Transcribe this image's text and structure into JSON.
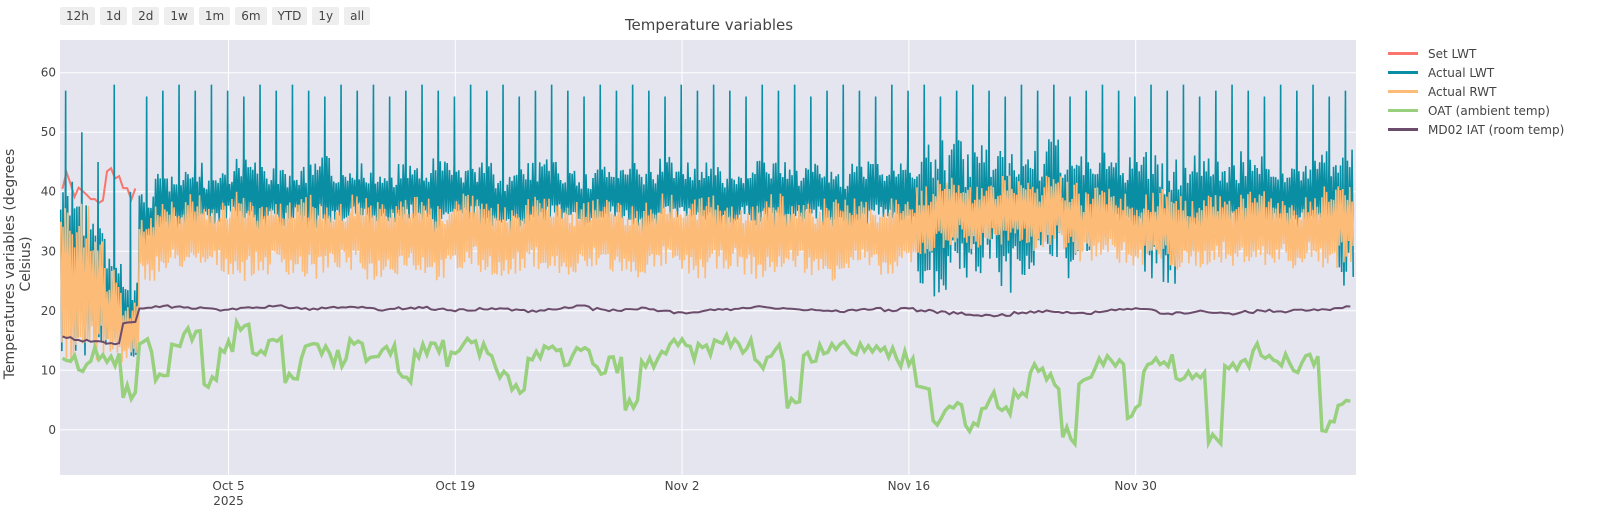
{
  "range_selector": [
    "12h",
    "1d",
    "2d",
    "1w",
    "1m",
    "6m",
    "YTD",
    "1y",
    "all"
  ],
  "chart_data": {
    "type": "line",
    "title": "Temperature variables",
    "xlabel": "",
    "ylabel": "Temperatures variables (degrees Celsius)",
    "x_start": "2025-09-25",
    "x_step": "1 day",
    "xlim": [
      "2025-09-24 14:00",
      "2025-12-13 12:00"
    ],
    "ylim": [
      -7.6,
      65.5
    ],
    "yticks": [
      0,
      10,
      20,
      30,
      40,
      50,
      60
    ],
    "xticks": [
      {
        "label": "Oct 5",
        "sub": "2025",
        "day": 10
      },
      {
        "label": "Oct 19",
        "sub": "",
        "day": 24
      },
      {
        "label": "Nov 2",
        "sub": "",
        "day": 38
      },
      {
        "label": "Nov 16",
        "sub": "",
        "day": 52
      },
      {
        "label": "Nov 30",
        "sub": "",
        "day": 66
      }
    ],
    "grid": true,
    "legend_position": "right",
    "series": [
      {
        "name": "Set LWT",
        "color": "#f8766d",
        "values": [
          42,
          40,
          38,
          43,
          40,
          null,
          null
        ]
      },
      {
        "name": "Actual LWT",
        "color": "#0a8ea3",
        "high": [
          45,
          40,
          35,
          30,
          25,
          40,
          43,
          44,
          45,
          43,
          44,
          46,
          45,
          44,
          43,
          45,
          46,
          44,
          45,
          44,
          43,
          45,
          44,
          46,
          45,
          44,
          45,
          43,
          44,
          45,
          46,
          44,
          43,
          45,
          44,
          45,
          44,
          46,
          45,
          44,
          45,
          43,
          44,
          46,
          45,
          44,
          45,
          44,
          43,
          45,
          46,
          45,
          46,
          48,
          49,
          50,
          47,
          48,
          49,
          48,
          47,
          49,
          48,
          46,
          47,
          45,
          46,
          47,
          45,
          46,
          47,
          46,
          45,
          47,
          46,
          45,
          44,
          46,
          47,
          48
        ],
        "low": [
          12,
          12,
          12,
          12,
          12,
          30,
          32,
          34,
          33,
          34,
          35,
          34,
          33,
          34,
          35,
          33,
          34,
          34,
          35,
          33,
          34,
          35,
          34,
          33,
          34,
          35,
          34,
          33,
          34,
          33,
          35,
          34,
          33,
          34,
          35,
          34,
          33,
          34,
          35,
          34,
          33,
          34,
          35,
          34,
          33,
          34,
          35,
          34,
          33,
          34,
          35,
          34,
          32,
          24,
          22,
          27,
          25,
          28,
          23,
          26,
          27,
          29,
          25,
          30,
          31,
          33,
          32,
          25,
          24,
          26,
          30,
          32,
          33,
          31,
          32,
          33,
          34,
          32,
          30,
          24
        ],
        "peak": [
          57,
          50,
          45,
          58,
          40,
          56,
          57,
          58,
          57,
          58,
          57,
          56,
          58,
          57,
          58,
          57,
          56,
          58,
          57,
          58,
          56,
          57,
          58,
          57,
          56,
          58,
          57,
          58,
          56,
          57,
          58,
          57,
          56,
          58,
          57,
          58,
          57,
          56,
          58,
          57,
          58,
          57,
          56,
          58,
          57,
          58,
          56,
          57,
          58,
          57,
          56,
          58,
          57,
          58,
          56,
          57,
          58,
          57,
          56,
          58,
          57,
          58,
          56,
          57,
          58,
          57,
          56,
          58,
          57,
          58,
          56,
          57,
          58,
          57,
          56,
          58,
          57,
          58,
          56,
          57
        ]
      },
      {
        "name": "Actual RWT",
        "color": "#fdbb78",
        "high": [
          40,
          38,
          33,
          28,
          22,
          36,
          38,
          39,
          40,
          38,
          39,
          40,
          39,
          38,
          39,
          40,
          39,
          38,
          40,
          39,
          38,
          39,
          40,
          38,
          39,
          40,
          39,
          38,
          39,
          40,
          39,
          38,
          39,
          40,
          39,
          38,
          39,
          40,
          38,
          39,
          40,
          39,
          38,
          39,
          40,
          39,
          38,
          39,
          40,
          39,
          38,
          39,
          40,
          41,
          42,
          43,
          41,
          42,
          43,
          42,
          41,
          43,
          42,
          40,
          41,
          40,
          39,
          40,
          41,
          40,
          39,
          40,
          39,
          40,
          41,
          39,
          38,
          40,
          41,
          42
        ],
        "low": [
          11,
          11,
          11,
          11,
          11,
          25,
          26,
          27,
          26,
          27,
          26,
          25,
          26,
          27,
          26,
          25,
          26,
          27,
          26,
          25,
          26,
          27,
          26,
          25,
          26,
          27,
          26,
          25,
          26,
          27,
          26,
          25,
          26,
          27,
          26,
          25,
          26,
          27,
          26,
          25,
          26,
          27,
          26,
          25,
          26,
          27,
          26,
          25,
          26,
          27,
          26,
          25,
          27,
          29,
          30,
          31,
          30,
          31,
          30,
          31,
          30,
          31,
          29,
          28,
          29,
          28,
          27,
          28,
          27,
          26,
          27,
          28,
          27,
          28,
          27,
          28,
          27,
          28,
          27,
          28
        ]
      },
      {
        "name": "OAT (ambient temp)",
        "color": "#98d07e",
        "values": [
          12,
          11,
          13,
          12,
          6,
          14,
          9,
          15,
          16,
          8,
          14,
          17,
          12,
          15,
          8,
          13,
          14,
          12,
          14,
          11,
          14,
          9,
          13,
          14,
          12,
          14,
          13,
          10,
          7,
          12,
          13,
          12,
          13,
          10,
          11,
          4,
          11,
          13,
          14,
          13,
          14,
          15,
          14,
          11,
          13,
          5,
          12,
          14,
          15,
          13,
          14,
          13,
          12,
          7,
          2,
          4,
          1,
          5,
          3,
          6,
          10,
          8,
          -1,
          9,
          11,
          12,
          3,
          11,
          12,
          9,
          10,
          -1,
          10,
          12,
          13,
          12,
          11,
          12,
          1,
          4
        ]
      },
      {
        "name": "MD02 IAT (room temp)",
        "color": "#6b4c6b",
        "values": [
          15.5,
          15,
          14.8,
          14.5,
          18,
          20.5,
          20.8,
          20.6,
          20.4,
          20.3,
          20.2,
          20.4,
          20.6,
          20.8,
          20.5,
          20.3,
          20.4,
          20.6,
          20.5,
          20.3,
          20.2,
          20.4,
          20.5,
          20.3,
          20.1,
          20.2,
          20.4,
          20.3,
          20.1,
          19.9,
          20.2,
          20.5,
          20.7,
          20.3,
          20.1,
          20.2,
          20.4,
          20.1,
          19.6,
          19.8,
          20.1,
          20.3,
          20.5,
          20.6,
          20.4,
          20.3,
          20.1,
          20.0,
          19.9,
          20.2,
          20.3,
          20.1,
          20.4,
          20.0,
          19.8,
          19.6,
          19.4,
          19.2,
          19.3,
          19.6,
          19.8,
          19.9,
          19.7,
          19.6,
          19.9,
          20.1,
          20.4,
          20.2,
          19.5,
          19.7,
          19.9,
          19.6,
          19.4,
          19.8,
          20.0,
          19.9,
          20.1,
          20.2,
          20.3,
          20.6
        ]
      }
    ]
  }
}
